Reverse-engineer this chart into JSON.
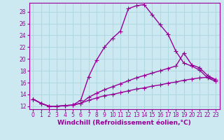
{
  "title": "",
  "xlabel": "Windchill (Refroidissement éolien,°C)",
  "ylabel": "",
  "bg_color": "#cce8f0",
  "line_color": "#990099",
  "grid_color": "#b0d8e0",
  "xlim": [
    -0.5,
    23.5
  ],
  "ylim": [
    11.5,
    29.5
  ],
  "yticks": [
    12,
    14,
    16,
    18,
    20,
    22,
    24,
    26,
    28
  ],
  "xticks": [
    0,
    1,
    2,
    3,
    4,
    5,
    6,
    7,
    8,
    9,
    10,
    11,
    12,
    13,
    14,
    15,
    16,
    17,
    18,
    19,
    20,
    21,
    22,
    23
  ],
  "curve1_x": [
    0,
    1,
    2,
    3,
    4,
    5,
    6,
    7,
    8,
    9,
    10,
    11,
    12,
    13,
    14,
    15,
    16,
    17,
    18,
    19,
    20,
    21,
    22,
    23
  ],
  "curve1_y": [
    13.2,
    12.5,
    12.0,
    12.0,
    12.1,
    12.2,
    13.0,
    17.0,
    19.8,
    22.0,
    23.5,
    24.7,
    28.5,
    29.0,
    29.2,
    27.5,
    25.8,
    24.2,
    21.3,
    19.3,
    18.8,
    18.1,
    16.8,
    16.2
  ],
  "curve2_x": [
    0,
    1,
    2,
    3,
    4,
    5,
    6,
    7,
    8,
    9,
    10,
    11,
    12,
    13,
    14,
    15,
    16,
    17,
    18,
    19,
    20,
    21,
    22,
    23
  ],
  "curve2_y": [
    13.2,
    12.5,
    12.0,
    12.0,
    12.1,
    12.2,
    12.5,
    13.5,
    14.2,
    14.8,
    15.3,
    15.8,
    16.3,
    16.8,
    17.2,
    17.6,
    18.0,
    18.4,
    18.8,
    21.0,
    19.0,
    18.5,
    17.2,
    16.5
  ],
  "curve3_x": [
    0,
    1,
    2,
    3,
    4,
    5,
    6,
    7,
    8,
    9,
    10,
    11,
    12,
    13,
    14,
    15,
    16,
    17,
    18,
    19,
    20,
    21,
    22,
    23
  ],
  "curve3_y": [
    13.2,
    12.5,
    12.0,
    12.0,
    12.1,
    12.2,
    12.5,
    13.0,
    13.4,
    13.8,
    14.0,
    14.3,
    14.6,
    14.9,
    15.1,
    15.4,
    15.6,
    15.9,
    16.1,
    16.4,
    16.6,
    16.8,
    16.9,
    16.5
  ],
  "marker": "+",
  "markersize": 4,
  "linewidth": 1.0,
  "tick_fontsize": 5.5,
  "xlabel_fontsize": 6.5
}
